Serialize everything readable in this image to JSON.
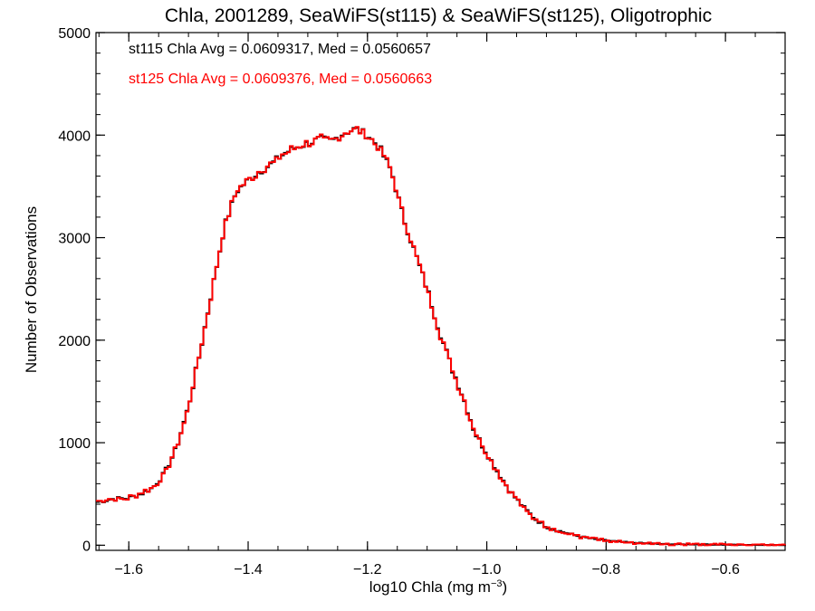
{
  "chart_data": {
    "type": "line",
    "title": "Chla, 2001289, SeaWiFS(st115) & SeaWiFS(st125), Oligotrophic",
    "xlabel_main": "log10 Chla (mg m",
    "xlabel_sup": "−3",
    "xlabel_close": ")",
    "ylabel": "Number of Observations",
    "xlim": [
      -1.655,
      -0.5
    ],
    "ylim": [
      -50,
      5000
    ],
    "x_ticks": [
      -1.6,
      -1.4,
      -1.2,
      -1.0,
      -0.8,
      -0.6
    ],
    "x_tick_labels": [
      "−1.6",
      "−1.4",
      "−1.2",
      "−1.0",
      "−0.8",
      "−0.6"
    ],
    "y_ticks": [
      0,
      1000,
      2000,
      3000,
      4000,
      5000
    ],
    "y_tick_labels": [
      "0",
      "1000",
      "2000",
      "3000",
      "4000",
      "5000"
    ],
    "annotations": [
      {
        "text": "st115 Chla Avg = 0.0609317, Med = 0.0560657",
        "color": "#000000"
      },
      {
        "text": "st125 Chla Avg = 0.0609376, Med = 0.0560663",
        "color": "#ff0000"
      }
    ],
    "curve_points": [
      [
        -1.655,
        420
      ],
      [
        -1.63,
        450
      ],
      [
        -1.6,
        460
      ],
      [
        -1.58,
        500
      ],
      [
        -1.56,
        560
      ],
      [
        -1.54,
        700
      ],
      [
        -1.52,
        950
      ],
      [
        -1.5,
        1350
      ],
      [
        -1.48,
        1900
      ],
      [
        -1.46,
        2500
      ],
      [
        -1.44,
        3100
      ],
      [
        -1.42,
        3450
      ],
      [
        -1.4,
        3560
      ],
      [
        -1.38,
        3650
      ],
      [
        -1.36,
        3720
      ],
      [
        -1.34,
        3820
      ],
      [
        -1.32,
        3880
      ],
      [
        -1.3,
        3920
      ],
      [
        -1.28,
        3960
      ],
      [
        -1.26,
        3940
      ],
      [
        -1.24,
        4020
      ],
      [
        -1.22,
        4060
      ],
      [
        -1.2,
        4000
      ],
      [
        -1.18,
        3880
      ],
      [
        -1.16,
        3650
      ],
      [
        -1.14,
        3200
      ],
      [
        -1.12,
        2850
      ],
      [
        -1.1,
        2500
      ],
      [
        -1.08,
        2100
      ],
      [
        -1.06,
        1750
      ],
      [
        -1.04,
        1450
      ],
      [
        -1.02,
        1100
      ],
      [
        -1.0,
        900
      ],
      [
        -0.98,
        700
      ],
      [
        -0.96,
        520
      ],
      [
        -0.94,
        380
      ],
      [
        -0.92,
        260
      ],
      [
        -0.9,
        180
      ],
      [
        -0.88,
        140
      ],
      [
        -0.86,
        110
      ],
      [
        -0.84,
        80
      ],
      [
        -0.82,
        60
      ],
      [
        -0.8,
        45
      ],
      [
        -0.78,
        35
      ],
      [
        -0.76,
        25
      ],
      [
        -0.74,
        20
      ],
      [
        -0.72,
        15
      ],
      [
        -0.7,
        10
      ],
      [
        -0.65,
        8
      ],
      [
        -0.6,
        5
      ],
      [
        -0.55,
        3
      ],
      [
        -0.5,
        2
      ]
    ],
    "series": [
      {
        "name": "st115",
        "color": "#000000",
        "noise_seed": 7,
        "noise_amp": 40,
        "bin_width": 0.005
      },
      {
        "name": "st125",
        "color": "#ff0000",
        "noise_seed": 7,
        "noise_amp": 40,
        "bin_width": 0.005,
        "delta_seed": 19,
        "delta_amp": 12
      }
    ]
  }
}
